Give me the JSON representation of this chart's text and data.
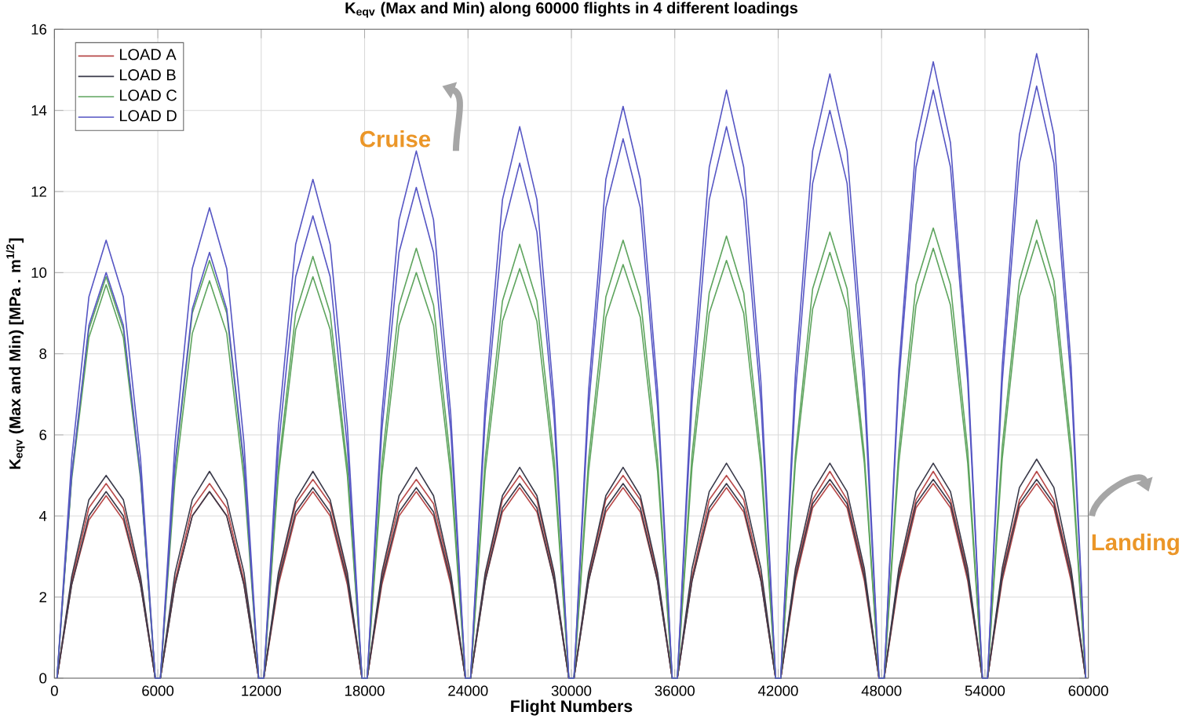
{
  "chart_data": {
    "type": "line",
    "title": "K$_{eqv}$ (Max and Min) along 60000 flights in 4 different loadings",
    "xlabel": "Flight Numbers",
    "ylabel": "K$_{eqv}$ (Max and Min) [MPa . m$^{1/2}$]",
    "annotations": [
      "Cruise",
      "Landing"
    ],
    "xlim": [
      0,
      60000
    ],
    "ylim": [
      0,
      16
    ],
    "xticks": [
      0,
      6000,
      12000,
      18000,
      24000,
      30000,
      36000,
      42000,
      48000,
      54000,
      60000
    ],
    "yticks": [
      0,
      2,
      4,
      6,
      8,
      10,
      12,
      14,
      16
    ],
    "grid": true,
    "legend": "top left",
    "x": [
      150,
      1000,
      2000,
      3000,
      4000,
      5000,
      5850,
      6150,
      7000,
      8000,
      9000,
      10000,
      11000,
      11850,
      12150,
      13000,
      14000,
      15000,
      16000,
      17000,
      17850,
      18150,
      19000,
      20000,
      21000,
      22000,
      23000,
      23850,
      24150,
      25000,
      26000,
      27000,
      28000,
      29000,
      29850,
      30150,
      31000,
      32000,
      33000,
      34000,
      35000,
      35850,
      36150,
      37000,
      38000,
      39000,
      40000,
      41000,
      41850,
      42150,
      43000,
      44000,
      45000,
      46000,
      47000,
      47850,
      48150,
      49000,
      50000,
      51000,
      52000,
      53000,
      53850,
      54150,
      55000,
      56000,
      57000,
      58000,
      59000,
      59850
    ],
    "series": [
      {
        "name": "LOAD A",
        "color": "#b84a4a",
        "values": [
          0,
          2.4,
          4.2,
          4.8,
          4.2,
          2.4,
          0,
          0,
          2.4,
          4.2,
          4.8,
          4.2,
          2.4,
          0,
          0,
          2.5,
          4.3,
          4.9,
          4.3,
          2.5,
          0,
          0,
          2.5,
          4.3,
          4.9,
          4.3,
          2.5,
          0,
          0,
          2.5,
          4.4,
          5.0,
          4.4,
          2.5,
          0,
          0,
          2.5,
          4.4,
          5.0,
          4.4,
          2.5,
          0,
          0,
          2.5,
          4.4,
          5.0,
          4.4,
          2.5,
          0,
          0,
          2.6,
          4.4,
          5.1,
          4.4,
          2.6,
          0,
          0,
          2.6,
          4.4,
          5.1,
          4.4,
          2.6,
          0,
          0,
          2.6,
          4.4,
          5.1,
          4.4,
          2.6,
          0
        ]
      },
      {
        "name": "LOAD B",
        "color": "#3a3a4a",
        "values": [
          0,
          2.5,
          4.4,
          5.0,
          4.4,
          2.5,
          0,
          0,
          2.6,
          4.4,
          5.1,
          4.4,
          2.6,
          0,
          0,
          2.6,
          4.4,
          5.1,
          4.4,
          2.6,
          0,
          0,
          2.6,
          4.5,
          5.2,
          4.5,
          2.6,
          0,
          0,
          2.6,
          4.5,
          5.2,
          4.5,
          2.6,
          0,
          0,
          2.6,
          4.5,
          5.2,
          4.5,
          2.6,
          0,
          0,
          2.7,
          4.6,
          5.3,
          4.6,
          2.7,
          0,
          0,
          2.7,
          4.6,
          5.3,
          4.6,
          2.7,
          0,
          0,
          2.7,
          4.6,
          5.3,
          4.6,
          2.7,
          0,
          0,
          2.7,
          4.7,
          5.4,
          4.7,
          2.7,
          0
        ]
      },
      {
        "name": "LOAD C",
        "color": "#5ea45e",
        "values": [
          0,
          5.0,
          8.6,
          9.9,
          8.6,
          5.0,
          0,
          0,
          5.2,
          9.0,
          10.3,
          9.0,
          5.2,
          0,
          0,
          5.2,
          9.0,
          10.4,
          9.0,
          5.2,
          0,
          0,
          5.3,
          9.2,
          10.6,
          9.2,
          5.3,
          0,
          0,
          5.4,
          9.3,
          10.7,
          9.3,
          5.4,
          0,
          0,
          5.4,
          9.4,
          10.8,
          9.4,
          5.4,
          0,
          0,
          5.5,
          9.5,
          10.9,
          9.5,
          5.5,
          0,
          0,
          5.5,
          9.6,
          11.0,
          9.6,
          5.5,
          0,
          0,
          5.6,
          9.7,
          11.1,
          9.7,
          5.6,
          0,
          0,
          5.7,
          9.8,
          11.3,
          9.8,
          5.7,
          0
        ]
      },
      {
        "name": "LOAD D",
        "color": "#5656c4",
        "values": [
          0,
          5.4,
          9.4,
          10.8,
          9.4,
          5.4,
          0,
          0,
          5.8,
          10.1,
          11.6,
          10.1,
          5.8,
          0,
          0,
          6.2,
          10.7,
          12.3,
          10.7,
          6.2,
          0,
          0,
          6.5,
          11.3,
          13.0,
          11.3,
          6.5,
          0,
          0,
          6.8,
          11.8,
          13.6,
          11.8,
          6.8,
          0,
          0,
          7.1,
          12.3,
          14.1,
          12.3,
          7.1,
          0,
          0,
          7.3,
          12.6,
          14.5,
          12.6,
          7.3,
          0,
          0,
          7.5,
          13.0,
          14.9,
          13.0,
          7.5,
          0,
          0,
          7.6,
          13.2,
          15.2,
          13.2,
          7.6,
          0,
          0,
          7.7,
          13.4,
          15.4,
          13.4,
          7.7,
          0
        ]
      },
      {
        "color": "#b84a4a",
        "values": [
          0,
          2.3,
          3.9,
          4.5,
          3.9,
          2.3,
          0,
          0,
          2.3,
          4.0,
          4.6,
          4.0,
          2.3,
          0,
          0,
          2.3,
          4.0,
          4.6,
          4.0,
          2.3,
          0,
          0,
          2.3,
          4.0,
          4.6,
          4.0,
          2.3,
          0,
          0,
          2.4,
          4.1,
          4.7,
          4.1,
          2.4,
          0,
          0,
          2.4,
          4.1,
          4.7,
          4.1,
          2.4,
          0,
          0,
          2.4,
          4.1,
          4.7,
          4.1,
          2.4,
          0,
          0,
          2.4,
          4.2,
          4.8,
          4.2,
          2.4,
          0,
          0,
          2.4,
          4.2,
          4.8,
          4.2,
          2.4,
          0,
          0,
          2.4,
          4.2,
          4.8,
          4.2,
          2.4,
          0
        ]
      },
      {
        "color": "#3a3a4a",
        "values": [
          0,
          2.3,
          4.0,
          4.6,
          4.0,
          2.3,
          0,
          0,
          2.3,
          4.0,
          4.6,
          4.0,
          2.3,
          0,
          0,
          2.4,
          4.1,
          4.7,
          4.1,
          2.4,
          0,
          0,
          2.4,
          4.1,
          4.7,
          4.1,
          2.4,
          0,
          0,
          2.4,
          4.2,
          4.8,
          4.2,
          2.4,
          0,
          0,
          2.4,
          4.2,
          4.8,
          4.2,
          2.4,
          0,
          0,
          2.4,
          4.2,
          4.8,
          4.2,
          2.4,
          0,
          0,
          2.5,
          4.3,
          4.9,
          4.3,
          2.5,
          0,
          0,
          2.5,
          4.3,
          4.9,
          4.3,
          2.5,
          0,
          0,
          2.5,
          4.3,
          4.9,
          4.3,
          2.5,
          0
        ]
      },
      {
        "color": "#5ea45e",
        "values": [
          0,
          4.9,
          8.4,
          9.7,
          8.4,
          4.9,
          0,
          0,
          4.9,
          8.5,
          9.8,
          8.5,
          4.9,
          0,
          0,
          5.0,
          8.6,
          9.9,
          8.6,
          5.0,
          0,
          0,
          5.0,
          8.7,
          10.0,
          8.7,
          5.0,
          0,
          0,
          5.1,
          8.8,
          10.1,
          8.8,
          5.1,
          0,
          0,
          5.1,
          8.9,
          10.2,
          8.9,
          5.1,
          0,
          0,
          5.2,
          9.0,
          10.3,
          9.0,
          5.2,
          0,
          0,
          5.3,
          9.1,
          10.5,
          9.1,
          5.3,
          0,
          0,
          5.3,
          9.2,
          10.6,
          9.2,
          5.3,
          0,
          0,
          5.4,
          9.4,
          10.8,
          9.4,
          5.4,
          0
        ]
      },
      {
        "color": "#5656c4",
        "values": [
          0,
          5.0,
          8.7,
          10.0,
          8.7,
          5.0,
          0,
          0,
          5.3,
          9.1,
          10.5,
          9.1,
          5.3,
          0,
          0,
          5.7,
          9.9,
          11.4,
          9.9,
          5.7,
          0,
          0,
          6.1,
          10.5,
          12.1,
          10.5,
          6.1,
          0,
          0,
          6.4,
          11.0,
          12.7,
          11.0,
          6.4,
          0,
          0,
          6.7,
          11.6,
          13.3,
          11.6,
          6.7,
          0,
          0,
          6.8,
          11.8,
          13.6,
          11.8,
          6.8,
          0,
          0,
          7.0,
          12.2,
          14.0,
          12.2,
          7.0,
          0,
          0,
          7.3,
          12.6,
          14.5,
          12.6,
          7.3,
          0,
          0,
          7.3,
          12.7,
          14.6,
          12.7,
          7.3,
          0
        ]
      }
    ]
  }
}
